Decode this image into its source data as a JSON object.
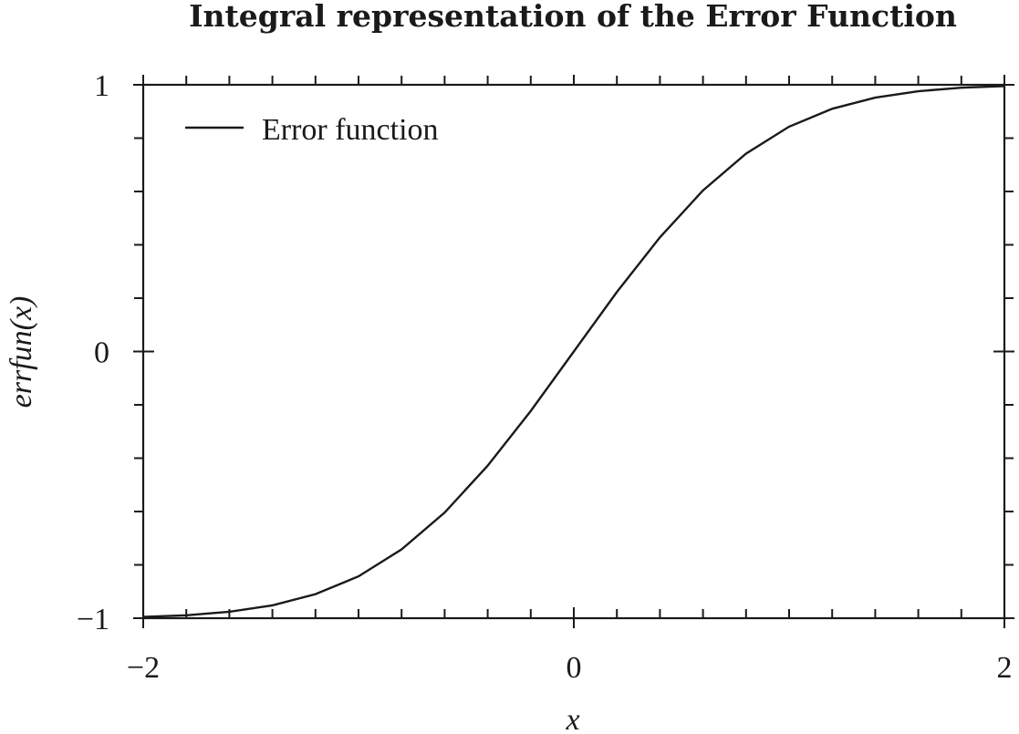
{
  "chart_data": {
    "type": "line",
    "title": "Integral representation of the Error Function",
    "xlabel": "x",
    "ylabel": "errfun(x)",
    "xlim": [
      -2,
      2
    ],
    "ylim": [
      -1,
      1
    ],
    "x_ticks": [
      {
        "value": -2,
        "label": "−2"
      },
      {
        "value": 0,
        "label": "0"
      },
      {
        "value": 2,
        "label": "2"
      }
    ],
    "y_ticks": [
      {
        "value": -1,
        "label": "−1"
      },
      {
        "value": 0,
        "label": "0"
      },
      {
        "value": 1,
        "label": "1"
      }
    ],
    "x_minor_step": 0.2,
    "y_minor_step": 0.2,
    "grid": false,
    "legend": {
      "position": "top-left",
      "entries": [
        "Error function"
      ]
    },
    "series": [
      {
        "name": "Error function",
        "color": "#1a1a1a",
        "x": [
          -2.0,
          -1.8,
          -1.6,
          -1.4,
          -1.2,
          -1.0,
          -0.8,
          -0.6,
          -0.4,
          -0.2,
          0.0,
          0.2,
          0.4,
          0.6,
          0.8,
          1.0,
          1.2,
          1.4,
          1.6,
          1.8,
          2.0
        ],
        "y": [
          -0.995,
          -0.989,
          -0.976,
          -0.952,
          -0.91,
          -0.843,
          -0.742,
          -0.604,
          -0.428,
          -0.223,
          0.0,
          0.223,
          0.428,
          0.604,
          0.742,
          0.843,
          0.91,
          0.952,
          0.976,
          0.989,
          0.995
        ]
      }
    ]
  }
}
